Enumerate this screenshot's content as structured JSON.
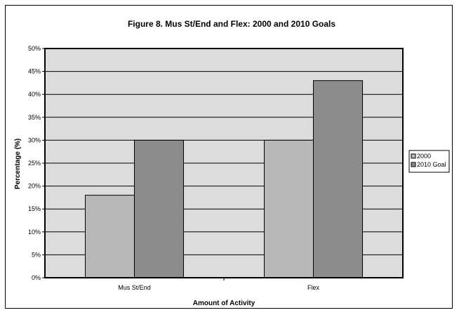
{
  "chart_data": {
    "type": "bar",
    "title": "Figure 8. Mus St/End and Flex: 2000 and 2010 Goals",
    "xlabel": "Amount of Activity",
    "ylabel": "Percentage (%)",
    "categories": [
      "Mus St/End",
      "Flex"
    ],
    "series": [
      {
        "name": "2000",
        "values": [
          18,
          30
        ],
        "color": "#b8b8b8"
      },
      {
        "name": "2010 Goal",
        "values": [
          30,
          43
        ],
        "color": "#8c8c8c"
      }
    ],
    "ylim": [
      0,
      50
    ],
    "ytick_step": 5,
    "ytick_labels": [
      "0%",
      "5%",
      "10%",
      "15%",
      "20%",
      "25%",
      "30%",
      "35%",
      "40%",
      "45%",
      "50%"
    ],
    "grid": true,
    "plot_background": "#dcdcdc",
    "legend_position": "right"
  }
}
